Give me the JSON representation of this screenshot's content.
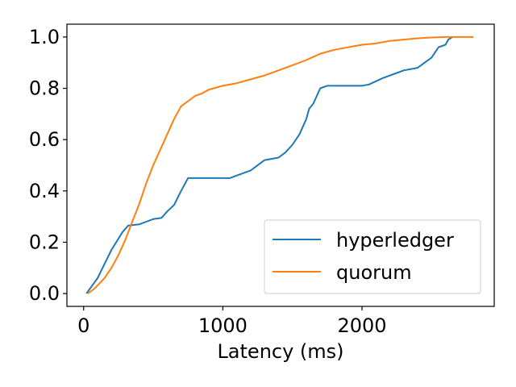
{
  "chart_data": {
    "type": "line",
    "title": "",
    "xlabel": "Latency (ms)",
    "ylabel": "",
    "xlim": [
      -120,
      2950
    ],
    "ylim": [
      -0.05,
      1.05
    ],
    "xticks": [
      0,
      1000,
      2000
    ],
    "xtick_labels": [
      "0",
      "1000",
      "2000"
    ],
    "yticks": [
      0.0,
      0.2,
      0.4,
      0.6,
      0.8,
      1.0
    ],
    "ytick_labels": [
      "0.0",
      "0.2",
      "0.4",
      "0.6",
      "0.8",
      "1.0"
    ],
    "grid": false,
    "legend_position": "lower-right",
    "series": [
      {
        "name": "hyperledger",
        "color": "#1f77b4",
        "x": [
          20,
          100,
          200,
          280,
          320,
          400,
          450,
          500,
          560,
          600,
          650,
          700,
          750,
          900,
          1050,
          1100,
          1200,
          1300,
          1400,
          1450,
          1500,
          1550,
          1600,
          1620,
          1650,
          1700,
          1750,
          1800,
          1900,
          2000,
          2050,
          2150,
          2250,
          2300,
          2400,
          2500,
          2550,
          2600,
          2620,
          2650
        ],
        "y": [
          0.0,
          0.06,
          0.17,
          0.24,
          0.265,
          0.27,
          0.28,
          0.29,
          0.295,
          0.32,
          0.345,
          0.4,
          0.45,
          0.45,
          0.45,
          0.46,
          0.48,
          0.52,
          0.53,
          0.55,
          0.58,
          0.62,
          0.68,
          0.72,
          0.74,
          0.8,
          0.81,
          0.81,
          0.81,
          0.81,
          0.815,
          0.84,
          0.86,
          0.87,
          0.88,
          0.92,
          0.96,
          0.97,
          0.99,
          1.0
        ]
      },
      {
        "name": "quorum",
        "color": "#ff7f0e",
        "x": [
          30,
          80,
          150,
          200,
          250,
          300,
          350,
          400,
          450,
          500,
          550,
          600,
          650,
          700,
          750,
          800,
          850,
          900,
          1000,
          1100,
          1200,
          1300,
          1400,
          1500,
          1600,
          1700,
          1800,
          1900,
          2000,
          2100,
          2200,
          2300,
          2400,
          2500,
          2600,
          2700,
          2800
        ],
        "y": [
          0.0,
          0.02,
          0.06,
          0.1,
          0.15,
          0.21,
          0.28,
          0.35,
          0.43,
          0.5,
          0.56,
          0.62,
          0.68,
          0.73,
          0.75,
          0.77,
          0.78,
          0.795,
          0.81,
          0.82,
          0.835,
          0.85,
          0.87,
          0.89,
          0.91,
          0.935,
          0.95,
          0.96,
          0.97,
          0.975,
          0.985,
          0.99,
          0.995,
          0.998,
          1.0,
          1.0,
          1.0
        ]
      }
    ]
  }
}
